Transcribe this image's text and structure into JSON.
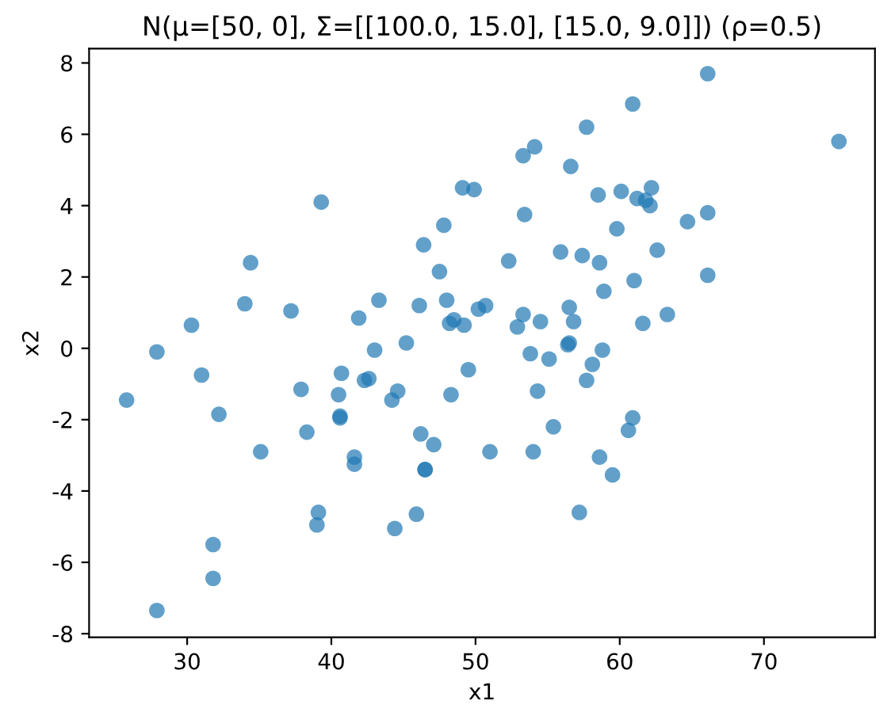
{
  "chart_data": {
    "type": "scatter",
    "title": "N(μ=[50, 0], Σ=[[100.0, 15.0], [15.0, 9.0]]) (ρ=0.5)",
    "xlabel": "x1",
    "ylabel": "x2",
    "xlim": [
      23.2,
      77.7
    ],
    "ylim": [
      -8.1,
      8.4
    ],
    "xticks": [
      30,
      40,
      50,
      60,
      70
    ],
    "yticks": [
      -8,
      -6,
      -4,
      -2,
      0,
      2,
      4,
      6,
      8
    ],
    "grid": false,
    "marker": "circle",
    "series": [
      {
        "color": "#1f77b4",
        "x": [
          25.8,
          27.9,
          27.9,
          30.3,
          31.0,
          31.8,
          31.8,
          32.2,
          34.0,
          34.4,
          35.1,
          37.2,
          37.9,
          38.3,
          39.1,
          39.0,
          39.3,
          40.5,
          40.6,
          40.6,
          40.7,
          41.6,
          41.6,
          41.9,
          42.3,
          42.6,
          43.0,
          43.3,
          44.2,
          44.4,
          44.6,
          45.2,
          45.9,
          46.1,
          46.2,
          46.4,
          46.5,
          46.5,
          47.1,
          47.5,
          47.8,
          48.0,
          48.2,
          48.3,
          48.5,
          49.1,
          49.2,
          49.5,
          49.9,
          50.2,
          50.7,
          51.0,
          52.3,
          52.9,
          53.3,
          53.3,
          53.4,
          53.8,
          54.0,
          54.1,
          54.3,
          54.5,
          55.1,
          55.4,
          55.9,
          56.4,
          56.5,
          56.5,
          56.6,
          56.8,
          57.2,
          57.4,
          57.7,
          57.7,
          58.1,
          58.5,
          58.6,
          58.6,
          58.8,
          58.9,
          59.5,
          59.8,
          60.1,
          60.6,
          60.9,
          60.9,
          61.0,
          61.2,
          61.6,
          61.8,
          62.1,
          62.2,
          62.6,
          63.3,
          64.7,
          66.1,
          66.1,
          66.1,
          75.2
        ],
        "values": [
          -1.45,
          -0.1,
          -7.35,
          0.65,
          -0.75,
          -5.5,
          -6.45,
          -1.85,
          1.25,
          2.4,
          -2.9,
          1.05,
          -1.15,
          -2.35,
          -4.6,
          -4.95,
          4.1,
          -1.3,
          -1.95,
          -1.9,
          -0.7,
          -3.05,
          -3.25,
          0.85,
          -0.9,
          -0.85,
          -0.05,
          1.35,
          -1.45,
          -5.05,
          -1.2,
          0.15,
          -4.65,
          1.2,
          -2.4,
          2.9,
          -3.4,
          -3.4,
          -2.7,
          2.15,
          3.45,
          1.35,
          0.7,
          -1.3,
          0.8,
          4.5,
          0.65,
          -0.6,
          4.45,
          1.1,
          1.2,
          -2.9,
          2.45,
          0.6,
          0.95,
          5.4,
          3.75,
          -0.15,
          -2.9,
          5.65,
          -1.2,
          0.75,
          -0.3,
          -2.2,
          2.7,
          0.1,
          0.15,
          1.15,
          5.1,
          0.75,
          -4.6,
          2.6,
          6.2,
          -0.9,
          -0.45,
          4.3,
          2.4,
          -3.05,
          -0.05,
          1.6,
          -3.55,
          3.35,
          4.4,
          -2.3,
          6.85,
          -1.95,
          1.9,
          4.2,
          0.7,
          4.15,
          4.0,
          4.5,
          2.75,
          0.95,
          3.55,
          7.7,
          3.8,
          2.05,
          5.8
        ]
      }
    ]
  }
}
